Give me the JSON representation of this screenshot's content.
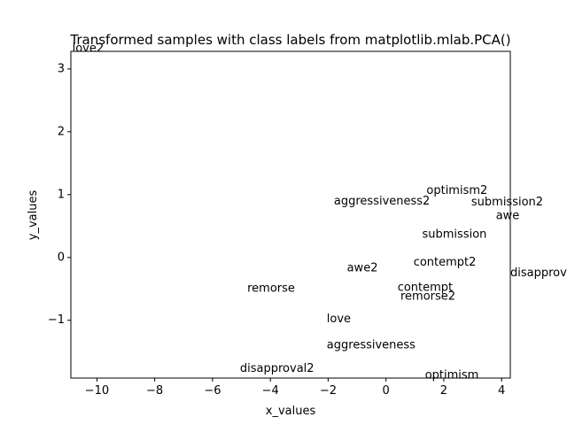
{
  "chart_data": {
    "type": "scatter",
    "title": "Transformed samples with class labels from matplotlib.mlab.PCA()",
    "xlabel": "x_values",
    "ylabel": "y_values",
    "xlim": [
      -10.9,
      4.3
    ],
    "ylim": [
      -1.92,
      3.28
    ],
    "grid": false,
    "xticks": [
      -10,
      -8,
      -6,
      -4,
      -2,
      0,
      2,
      4
    ],
    "yticks": [
      -1,
      0,
      1,
      2,
      3
    ],
    "points": [
      {
        "label": "love2",
        "x": -10.85,
        "y": 3.32
      },
      {
        "label": "optimism2",
        "x": 1.4,
        "y": 1.06
      },
      {
        "label": "aggressiveness2",
        "x": -1.8,
        "y": 0.89
      },
      {
        "label": "submission2",
        "x": 2.95,
        "y": 0.88
      },
      {
        "label": "awe",
        "x": 3.8,
        "y": 0.66
      },
      {
        "label": "submission",
        "x": 1.25,
        "y": 0.36
      },
      {
        "label": "contempt2",
        "x": 0.95,
        "y": -0.08
      },
      {
        "label": "awe2",
        "x": -1.35,
        "y": -0.17
      },
      {
        "label": "disapproval",
        "x": 4.3,
        "y": -0.25
      },
      {
        "label": "remorse",
        "x": -4.8,
        "y": -0.5
      },
      {
        "label": "contempt",
        "x": 0.4,
        "y": -0.48
      },
      {
        "label": "remorse2",
        "x": 0.5,
        "y": -0.62
      },
      {
        "label": "love",
        "x": -2.05,
        "y": -0.98
      },
      {
        "label": "aggressiveness",
        "x": -2.05,
        "y": -1.4
      },
      {
        "label": "disapproval2",
        "x": -5.05,
        "y": -1.77
      },
      {
        "label": "optimism",
        "x": 1.35,
        "y": -1.88
      }
    ]
  }
}
